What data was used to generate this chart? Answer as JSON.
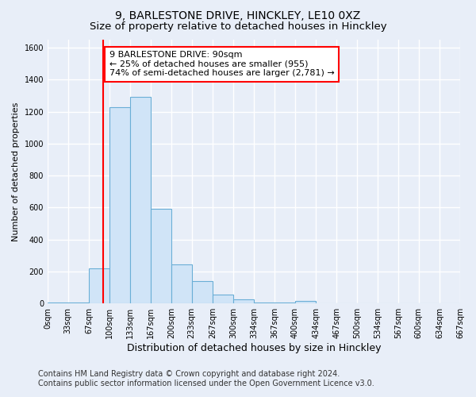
{
  "title_line1": "9, BARLESTONE DRIVE, HINCKLEY, LE10 0XZ",
  "title_line2": "Size of property relative to detached houses in Hinckley",
  "xlabel": "Distribution of detached houses by size in Hinckley",
  "ylabel": "Number of detached properties",
  "bin_edges": [
    0,
    33,
    67,
    100,
    133,
    167,
    200,
    233,
    267,
    300,
    334,
    367,
    400,
    434,
    467,
    500,
    534,
    567,
    600,
    634,
    667
  ],
  "bar_heights": [
    5,
    5,
    220,
    1230,
    1290,
    590,
    245,
    140,
    55,
    25,
    5,
    5,
    15,
    0,
    2,
    0,
    0,
    0,
    0,
    0
  ],
  "bar_color": "#d0e4f7",
  "bar_edgecolor": "#6aaed6",
  "vline_x": 90,
  "vline_color": "red",
  "vline_linewidth": 1.5,
  "ylim": [
    0,
    1650
  ],
  "yticks": [
    0,
    200,
    400,
    600,
    800,
    1000,
    1200,
    1400,
    1600
  ],
  "annotation_line1": "9 BARLESTONE DRIVE: 90sqm",
  "annotation_line2": "← 25% of detached houses are smaller (955)",
  "annotation_line3": "74% of semi-detached houses are larger (2,781) →",
  "footer_line1": "Contains HM Land Registry data © Crown copyright and database right 2024.",
  "footer_line2": "Contains public sector information licensed under the Open Government Licence v3.0.",
  "background_color": "#e8eef8",
  "plot_bg_color": "#e8eef8",
  "grid_color": "#ffffff",
  "title_fontsize": 10,
  "subtitle_fontsize": 9.5,
  "ylabel_fontsize": 8,
  "xlabel_fontsize": 9,
  "tick_label_fontsize": 7,
  "annotation_fontsize": 8,
  "footer_fontsize": 7
}
